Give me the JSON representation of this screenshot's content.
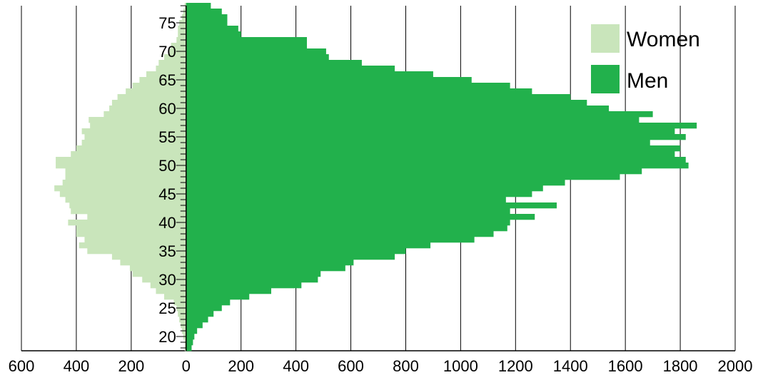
{
  "chart_data": {
    "type": "bar",
    "orientation": "horizontal",
    "layout": "population-pyramid",
    "title": "",
    "xlabel": "",
    "ylabel": "",
    "xlim": [
      -600,
      2000
    ],
    "ylim": [
      17.5,
      78
    ],
    "x_ticks": [
      -600,
      -400,
      -200,
      0,
      200,
      400,
      600,
      800,
      1000,
      1200,
      1400,
      1600,
      1800,
      2000
    ],
    "x_tick_labels": [
      "600",
      "400",
      "200",
      "0",
      "200",
      "400",
      "600",
      "800",
      "1000",
      "1200",
      "1400",
      "1600",
      "1800",
      "2000"
    ],
    "y_ticks": [
      20,
      25,
      30,
      35,
      40,
      45,
      50,
      55,
      60,
      65,
      70,
      75
    ],
    "y_tick_labels": [
      "20",
      "25",
      "30",
      "35",
      "40",
      "45",
      "50",
      "55",
      "60",
      "65",
      "70",
      "75"
    ],
    "grid": "vertical lines at major x ticks",
    "legend": {
      "position": "top-right"
    },
    "categories": [
      18,
      19,
      20,
      21,
      22,
      23,
      24,
      25,
      26,
      27,
      28,
      29,
      30,
      31,
      32,
      33,
      34,
      35,
      36,
      37,
      38,
      39,
      40,
      41,
      42,
      43,
      44,
      45,
      46,
      47,
      48,
      49,
      50,
      51,
      52,
      53,
      54,
      55,
      56,
      57,
      58,
      59,
      60,
      61,
      62,
      63,
      64,
      65,
      66,
      67,
      68,
      69,
      70,
      71,
      72,
      73,
      74,
      75,
      76,
      77,
      78
    ],
    "series": [
      {
        "name": "Women",
        "color": "#c9e5bb",
        "side": "left",
        "values": [
          5,
          5,
          10,
          15,
          20,
          25,
          30,
          35,
          45,
          80,
          110,
          130,
          160,
          195,
          205,
          240,
          270,
          360,
          390,
          370,
          400,
          400,
          430,
          360,
          420,
          425,
          440,
          460,
          480,
          450,
          440,
          440,
          475,
          475,
          420,
          400,
          380,
          370,
          380,
          350,
          355,
          300,
          280,
          270,
          250,
          220,
          195,
          170,
          145,
          110,
          100,
          80,
          60,
          55,
          35,
          30,
          30,
          25,
          15,
          10,
          5
        ]
      },
      {
        "name": "Men",
        "color": "#22b14c",
        "side": "right",
        "values": [
          20,
          25,
          30,
          40,
          60,
          80,
          100,
          130,
          160,
          230,
          310,
          420,
          480,
          490,
          580,
          610,
          760,
          800,
          890,
          1050,
          1120,
          1170,
          1180,
          1270,
          1180,
          1350,
          1165,
          1260,
          1300,
          1380,
          1580,
          1660,
          1830,
          1820,
          1780,
          1800,
          1690,
          1820,
          1780,
          1860,
          1650,
          1700,
          1540,
          1460,
          1400,
          1260,
          1180,
          1040,
          900,
          760,
          640,
          520,
          510,
          440,
          440,
          200,
          190,
          150,
          150,
          130,
          90
        ]
      }
    ]
  }
}
